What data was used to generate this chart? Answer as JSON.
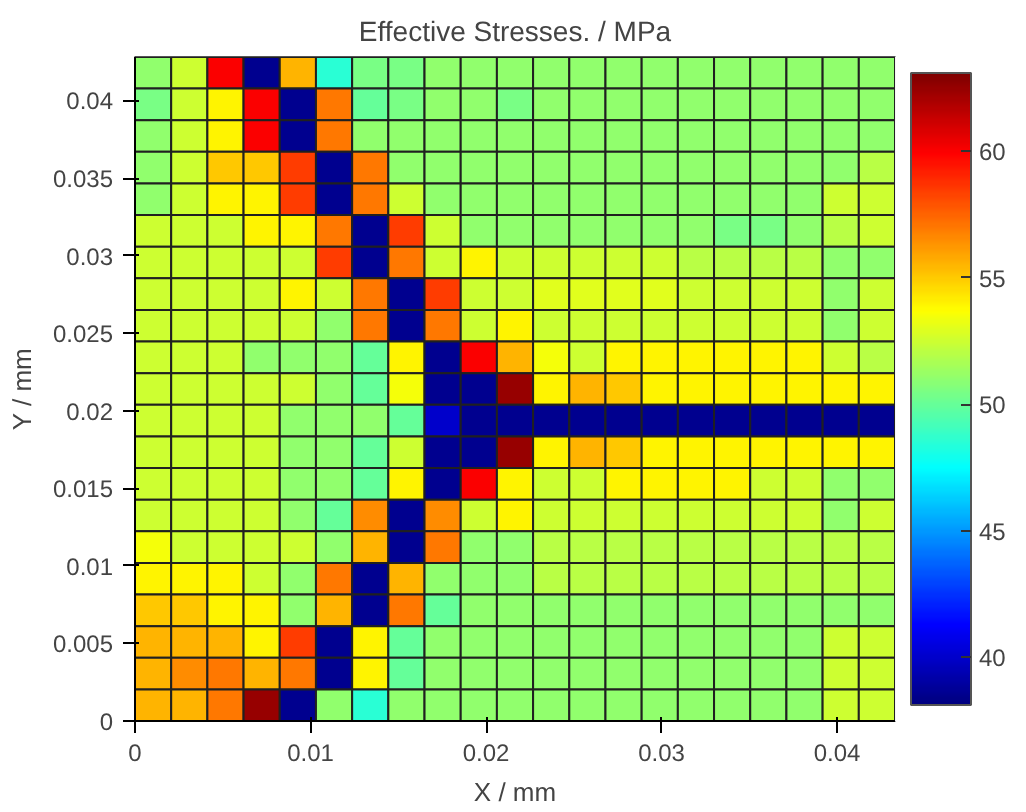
{
  "chart_data": {
    "type": "heatmap",
    "title": "Effective Stresses. / MPa",
    "xlabel": "X / mm",
    "ylabel": "Y / mm",
    "xlim": [
      0,
      0.0433
    ],
    "ylim": [
      0,
      0.0428
    ],
    "xticks": [
      0,
      0.01,
      0.02,
      0.03,
      0.04
    ],
    "yticks": [
      0,
      0.005,
      0.01,
      0.015,
      0.02,
      0.025,
      0.03,
      0.035,
      0.04
    ],
    "clim": [
      38.1,
      63.1
    ],
    "cticks": [
      40,
      45,
      50,
      55,
      60
    ],
    "cells": [
      [
        51,
        52.5,
        60,
        38.5,
        55.5,
        48.5,
        50.5,
        50.5,
        51,
        51,
        51,
        51,
        51,
        51,
        51,
        51,
        51,
        51,
        51,
        51,
        51
      ],
      [
        50.5,
        52.5,
        54,
        60,
        38.5,
        57,
        50,
        50.5,
        51,
        51,
        50.5,
        51,
        51,
        51,
        51,
        51,
        51,
        51,
        51,
        51,
        51
      ],
      [
        51,
        52.5,
        54,
        60,
        38.5,
        57,
        51,
        51,
        51,
        51,
        51,
        51,
        51,
        51,
        51,
        51,
        51,
        51,
        51,
        51,
        51
      ],
      [
        51,
        52.5,
        55,
        55,
        58.5,
        38.5,
        57,
        51,
        51,
        51,
        51,
        51,
        51,
        51,
        51,
        51,
        51,
        51,
        51,
        51,
        52
      ],
      [
        51,
        52.5,
        54,
        54,
        58.5,
        38.5,
        57,
        52.5,
        51,
        51,
        51,
        51,
        51,
        51,
        51,
        51,
        51,
        51,
        51,
        52.5,
        52.5
      ],
      [
        52.5,
        52.5,
        52.5,
        54,
        54,
        57,
        38.5,
        58.5,
        52.5,
        51,
        51,
        51,
        51,
        51,
        51,
        51,
        50.5,
        50.5,
        51,
        52,
        52.5
      ],
      [
        52.5,
        52.5,
        52.5,
        52.5,
        52.5,
        58.5,
        38.5,
        57,
        52.5,
        54,
        52.5,
        52.5,
        52.5,
        52.5,
        52.5,
        52,
        52,
        52,
        52,
        51,
        51
      ],
      [
        52.5,
        52.5,
        52.5,
        52.5,
        54,
        52.5,
        57,
        38.5,
        58.5,
        52.5,
        52.5,
        53,
        53,
        53,
        53,
        52.5,
        52.5,
        52.5,
        52.5,
        51,
        52.5
      ],
      [
        52.5,
        52.5,
        52.5,
        52.5,
        52.5,
        51,
        57,
        38.5,
        57,
        52.5,
        54,
        52.5,
        52.5,
        52.5,
        52.5,
        52.5,
        52.5,
        52.5,
        52.5,
        51,
        52.5
      ],
      [
        52.5,
        52.5,
        52.5,
        51,
        51,
        51,
        50,
        54,
        38.5,
        60,
        55.5,
        53.5,
        52.5,
        54,
        54,
        54,
        54,
        54,
        54,
        52.5,
        52
      ],
      [
        52.5,
        52.5,
        52.5,
        52.5,
        52.5,
        51,
        50,
        53.5,
        38.5,
        38.5,
        62.5,
        54,
        55.5,
        55,
        54,
        54,
        54,
        54,
        54,
        54,
        54
      ],
      [
        52.5,
        52.5,
        52.5,
        52.5,
        51,
        51,
        51,
        50,
        40,
        38.5,
        38.5,
        38.5,
        38.5,
        38.5,
        38.5,
        38.5,
        38.5,
        38.5,
        38.5,
        38.5,
        38.5
      ],
      [
        52.5,
        52.5,
        52.5,
        52.5,
        51,
        51,
        50,
        52.5,
        38.5,
        38.5,
        62.5,
        54,
        55.5,
        55,
        54,
        54,
        54,
        54,
        54,
        54,
        54
      ],
      [
        52.5,
        52.5,
        52.5,
        52.5,
        51,
        51,
        50,
        54,
        38.5,
        60,
        54,
        52.5,
        52.5,
        54,
        54,
        54,
        54,
        52.5,
        52.5,
        51,
        51
      ],
      [
        52.5,
        52.5,
        52.5,
        52.5,
        51,
        50,
        56.5,
        38.5,
        56.5,
        52.5,
        54,
        52.5,
        52.5,
        52.5,
        52.5,
        52.5,
        52.5,
        52.5,
        52.5,
        51,
        52.5
      ],
      [
        53.5,
        52.5,
        52.5,
        52.5,
        52.5,
        51,
        55.5,
        38.5,
        57,
        51,
        51,
        52,
        52,
        52,
        52,
        52,
        52,
        52,
        52,
        52,
        52
      ],
      [
        54,
        54,
        54,
        52.5,
        51,
        57,
        38.5,
        55.5,
        51,
        51,
        51,
        52,
        52,
        52,
        52,
        52,
        52,
        52,
        52,
        52,
        52
      ],
      [
        55,
        55,
        54,
        54,
        51,
        55.5,
        38.5,
        57,
        50,
        51,
        51,
        51,
        51,
        51,
        51,
        51,
        51,
        51,
        51,
        51,
        51
      ],
      [
        55.5,
        55.5,
        55.5,
        54,
        58.5,
        38.5,
        54,
        50,
        51,
        51,
        51,
        51,
        51,
        51,
        51,
        51,
        51,
        51,
        51,
        52.5,
        52.5
      ],
      [
        55.5,
        56.5,
        57,
        55.5,
        57,
        38.5,
        54,
        50,
        51,
        51,
        51,
        51,
        51,
        51,
        51,
        51,
        51,
        51,
        51,
        52.5,
        52.5
      ],
      [
        55.5,
        55.5,
        57,
        62.5,
        38.5,
        51,
        48.5,
        51,
        51,
        51,
        51,
        51,
        51,
        51,
        51,
        51,
        51,
        51,
        51,
        52.5,
        52.5
      ]
    ]
  }
}
